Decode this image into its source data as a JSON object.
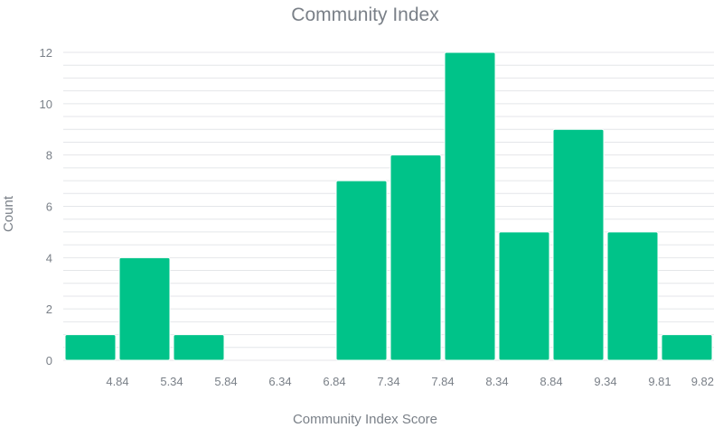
{
  "chart_data": {
    "type": "bar",
    "title": "Community Index",
    "xlabel": "Community Index Score",
    "ylabel": "Count",
    "ylim": [
      0,
      12
    ],
    "y_ticks": [
      "0",
      "2",
      "4",
      "6",
      "8",
      "10",
      "12"
    ],
    "x_ticks": [
      "4.84",
      "5.34",
      "5.84",
      "6.34",
      "6.84",
      "7.34",
      "7.84",
      "8.34",
      "8.84",
      "9.34",
      "9.81",
      "9.82"
    ],
    "bins": [
      {
        "from": "",
        "to": "4.84",
        "value": 1
      },
      {
        "from": "4.84",
        "to": "5.34",
        "value": 4
      },
      {
        "from": "5.34",
        "to": "5.84",
        "value": 1
      },
      {
        "from": "5.84",
        "to": "6.34",
        "value": 0
      },
      {
        "from": "6.34",
        "to": "6.84",
        "value": 0
      },
      {
        "from": "6.84",
        "to": "7.34",
        "value": 7
      },
      {
        "from": "7.34",
        "to": "7.84",
        "value": 8
      },
      {
        "from": "7.84",
        "to": "8.34",
        "value": 12
      },
      {
        "from": "8.34",
        "to": "8.84",
        "value": 5
      },
      {
        "from": "8.84",
        "to": "9.34",
        "value": 9
      },
      {
        "from": "9.34",
        "to": "9.81",
        "value": 5
      },
      {
        "from": "9.81",
        "to": "9.82",
        "value": 1
      }
    ],
    "grid": true,
    "legend": "none",
    "colors": {
      "bar": "#00c389"
    }
  }
}
